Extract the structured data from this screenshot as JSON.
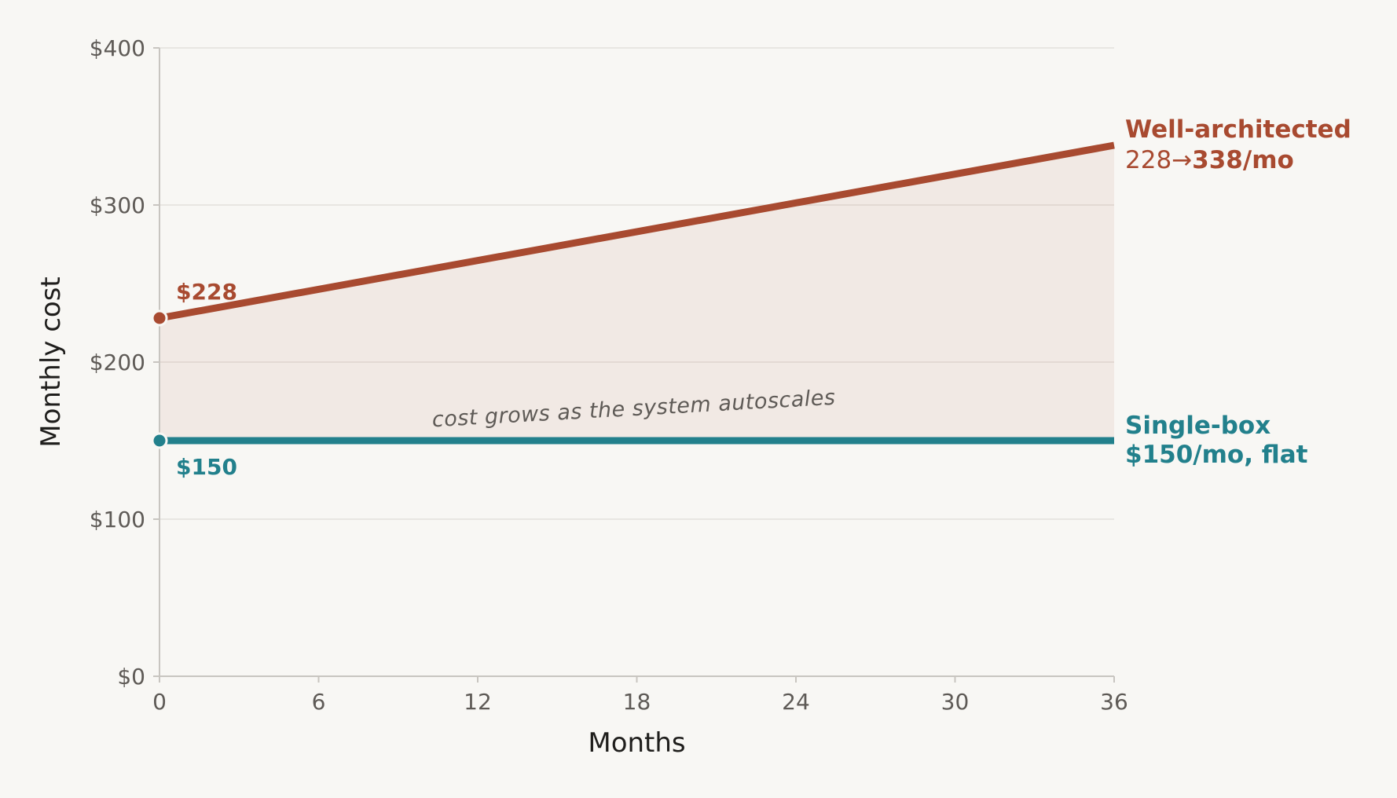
{
  "chart_data": {
    "type": "line",
    "xlabel": "Months",
    "ylabel": "Monthly cost",
    "xlim": [
      0,
      36
    ],
    "ylim": [
      0,
      400
    ],
    "x_ticks": [
      "0",
      "6",
      "12",
      "18",
      "24",
      "30",
      "36"
    ],
    "y_ticks": [
      "$0",
      "$100",
      "$200",
      "$300",
      "$400"
    ],
    "grid": "horizontal",
    "series": [
      {
        "name": "Well-architected",
        "x": [
          0,
          36
        ],
        "y": [
          228,
          338
        ],
        "color": "#a84a30",
        "start_label": "$228",
        "end_label_prefix": "228→",
        "end_label_value": "338/mo"
      },
      {
        "name": "Single-box",
        "x": [
          0,
          36
        ],
        "y": [
          150,
          150
        ],
        "color": "#22808c",
        "start_label": "$150",
        "end_label_detail": "$150/mo, flat"
      }
    ],
    "annotation": "cost grows as the system autoscales"
  }
}
